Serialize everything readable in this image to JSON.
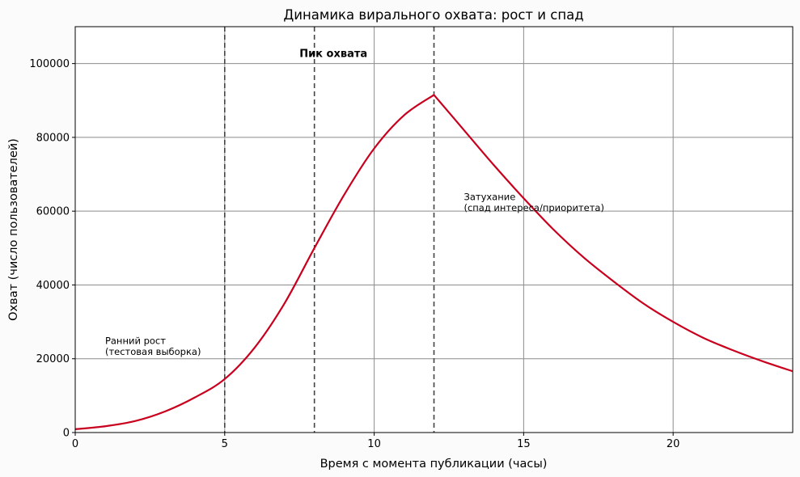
{
  "chart_data": {
    "type": "line",
    "title": "Динамика вирального охвата: рост и спад",
    "xlabel": "Время с момента публикации (часы)",
    "ylabel": "Охват (число пользователей)",
    "xlim": [
      0,
      24
    ],
    "ylim": [
      0,
      110000
    ],
    "x_ticks": [
      0,
      5,
      10,
      15,
      20
    ],
    "y_ticks": [
      0,
      20000,
      40000,
      60000,
      80000,
      100000
    ],
    "grid": true,
    "line_color": "#c8001e",
    "series": [
      {
        "x": [
          0,
          1,
          2,
          3,
          4,
          5,
          6,
          7,
          8,
          9,
          10,
          11,
          12,
          13,
          14,
          15,
          16,
          17,
          18,
          19,
          20,
          21,
          22,
          23,
          24
        ],
        "y": [
          900,
          1700,
          3100,
          5700,
          9500,
          14500,
          23000,
          35000,
          50000,
          64500,
          77000,
          86000,
          91500,
          82000,
          72500,
          63500,
          55000,
          47500,
          41000,
          35000,
          30000,
          25700,
          22300,
          19300,
          16600
        ]
      }
    ],
    "vlines": [
      5,
      8,
      12
    ],
    "annotations": [
      {
        "text": "Ранний рост",
        "x": 1.0,
        "y": 24000
      },
      {
        "text": "(тестовая выборка)",
        "x": 1.0,
        "y": 21000
      },
      {
        "text": "Пик охвата",
        "x": 7.5,
        "y": 101800,
        "bold": true
      },
      {
        "text": "Затухание",
        "x": 13.0,
        "y": 63000
      },
      {
        "text": "(спад интереса/приоритета)",
        "x": 13.0,
        "y": 60000
      }
    ]
  }
}
